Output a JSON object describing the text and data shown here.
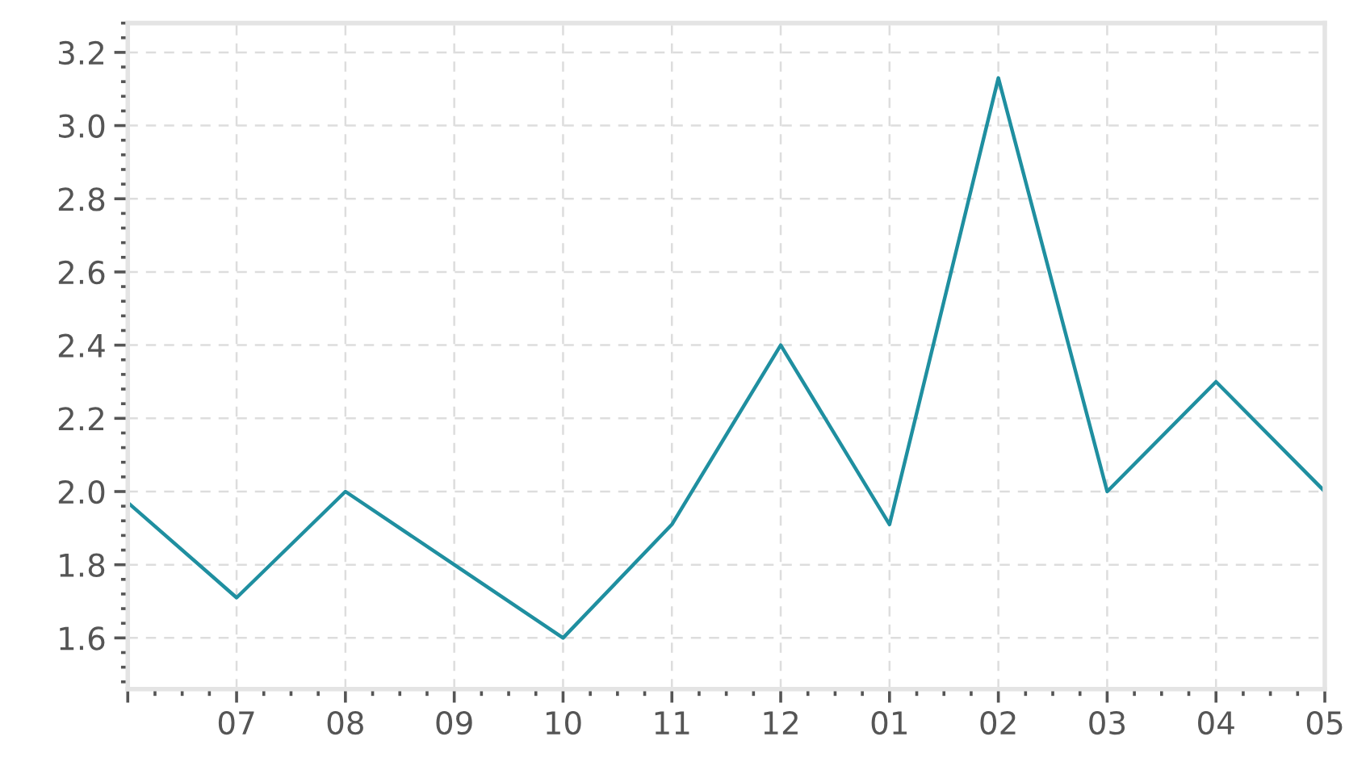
{
  "chart_data": {
    "type": "line",
    "categories": [
      null,
      "07",
      "08",
      "09",
      "10",
      "11",
      "12",
      "01",
      "02",
      "03",
      "04",
      "05"
    ],
    "series": [
      {
        "color": "#1f8fa0",
        "values": [
          1.97,
          1.71,
          2.0,
          1.8,
          1.6,
          1.91,
          2.4,
          1.91,
          3.13,
          2.0,
          2.3,
          2.0
        ]
      }
    ],
    "ylim": [
      1.46,
      3.28
    ],
    "yticks": [
      {
        "value": 1.6,
        "label": "1.6"
      },
      {
        "value": 1.8,
        "label": "1.8"
      },
      {
        "value": 2.0,
        "label": "2.0"
      },
      {
        "value": 2.2,
        "label": "2.2"
      },
      {
        "value": 2.4,
        "label": "2.4"
      },
      {
        "value": 2.6,
        "label": "2.6"
      },
      {
        "value": 2.8,
        "label": "2.8"
      },
      {
        "value": 3.0,
        "label": "3.0"
      },
      {
        "value": 3.2,
        "label": "3.2"
      }
    ],
    "grid": true,
    "marker": "none",
    "line_style": "solid"
  }
}
